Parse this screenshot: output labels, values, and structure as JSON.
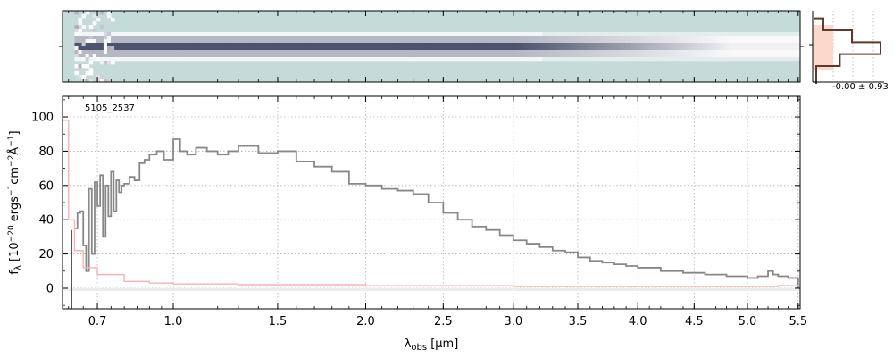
{
  "chart_data": [
    {
      "type": "heatmap",
      "title": "",
      "panel": "2d-spectrum",
      "colormap": [
        "#c4dbd9",
        "#ffffff",
        "#2c3552"
      ],
      "xlim_um": [
        0.58,
        5.52
      ],
      "trace_start_um": 0.62,
      "trace_fade_um": 3.0,
      "slit_rows": 20
    },
    {
      "type": "line",
      "panel": "profile",
      "annotation": "-0.00 ± 0.93",
      "fill_color": "#fbd7cc",
      "line_color": "#5c3a2e",
      "profile_x": [
        0.05,
        0.05,
        0.38,
        0.38,
        0.95,
        0.95,
        0.55,
        0.55,
        0.15,
        0.15,
        0.02
      ],
      "profile_y": [
        0,
        3,
        3,
        5,
        5,
        7,
        7,
        9,
        9,
        11,
        11
      ]
    },
    {
      "type": "line",
      "panel": "1d-spectrum",
      "object_id": "5105_2537",
      "xlabel": "λobs [μm]",
      "ylabel": "fλ [10⁻²⁰ ergs⁻¹cm⁻²Å⁻¹]",
      "x_axis": "λ^0.5 (square-root wavelength)",
      "xlim": [
        0.58,
        5.52
      ],
      "ylim": [
        -12,
        112
      ],
      "xticks": [
        0.7,
        1.0,
        1.5,
        2.0,
        2.5,
        3.0,
        3.5,
        4.0,
        4.5,
        5.0,
        5.5
      ],
      "xtick_labels": [
        "0.7",
        "1.0",
        "1.5",
        "2.0",
        "2.5",
        "3.0",
        "3.5",
        "4.0",
        "4.5",
        "5.0",
        "5.5"
      ],
      "yticks": [
        0,
        20,
        40,
        60,
        80,
        100
      ],
      "ytick_labels": [
        "0",
        "20",
        "40",
        "60",
        "80",
        "100"
      ],
      "grid": true,
      "series": [
        {
          "color": "#888888",
          "x": [
            0.62,
            0.63,
            0.64,
            0.65,
            0.66,
            0.67,
            0.68,
            0.69,
            0.7,
            0.71,
            0.72,
            0.73,
            0.74,
            0.75,
            0.76,
            0.77,
            0.78,
            0.79,
            0.8,
            0.82,
            0.84,
            0.86,
            0.88,
            0.9,
            0.93,
            0.96,
            1.0,
            1.03,
            1.06,
            1.1,
            1.15,
            1.2,
            1.25,
            1.3,
            1.4,
            1.5,
            1.6,
            1.7,
            1.8,
            1.9,
            2.0,
            2.1,
            2.2,
            2.3,
            2.4,
            2.5,
            2.6,
            2.7,
            2.8,
            2.9,
            3.0,
            3.1,
            3.2,
            3.3,
            3.4,
            3.5,
            3.6,
            3.7,
            3.8,
            3.9,
            4.0,
            4.2,
            4.4,
            4.6,
            4.8,
            5.0,
            5.1,
            5.2,
            5.25,
            5.3,
            5.4,
            5.5
          ],
          "y": [
            35,
            44,
            45,
            25,
            10,
            58,
            20,
            62,
            48,
            66,
            30,
            60,
            42,
            68,
            45,
            63,
            56,
            60,
            61,
            65,
            63,
            73,
            75,
            78,
            80,
            75,
            87,
            80,
            78,
            82,
            80,
            78,
            80,
            83,
            79,
            80,
            74,
            71,
            68,
            61,
            60,
            58,
            57,
            55,
            50,
            44,
            40,
            36,
            34,
            31,
            28,
            26,
            24,
            22,
            21,
            18,
            16,
            15,
            14,
            13,
            12,
            10,
            9,
            8,
            7,
            6,
            7,
            10,
            8,
            7,
            6,
            0
          ]
        },
        {
          "color": "#f7b3b3",
          "x": [
            0.58,
            0.6,
            0.62,
            0.65,
            0.7,
            0.8,
            0.9,
            1.0,
            1.3,
            1.5,
            2.0,
            2.5,
            3.0,
            3.5,
            4.0,
            4.5,
            5.0,
            5.3,
            5.5
          ],
          "y": [
            98,
            40,
            22,
            12,
            8,
            4,
            3,
            2.5,
            2,
            2,
            1.5,
            1.5,
            1,
            1,
            1,
            1,
            1,
            1.5,
            2
          ]
        }
      ]
    }
  ]
}
